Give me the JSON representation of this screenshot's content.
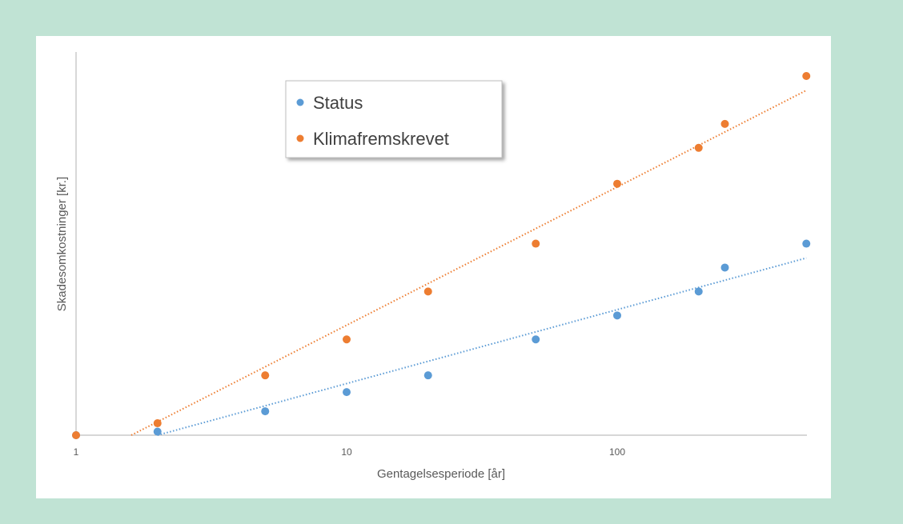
{
  "chart_data": {
    "type": "scatter",
    "title": "",
    "xlabel": "Gentagelsesperiode [år]",
    "ylabel": "Skadesomkostninger [kr.]",
    "x_scale": "log",
    "xlim": [
      1,
      500
    ],
    "x_ticks": [
      "1",
      "10",
      "100"
    ],
    "y_ticks_shown": false,
    "ylim": [
      0,
      15
    ],
    "grid": false,
    "legend_position": "top-center",
    "trendlines": "logarithmic, dotted",
    "series": [
      {
        "name": "Status",
        "color": "#5b9bd5",
        "x": [
          1,
          2,
          5,
          10,
          20,
          50,
          100,
          200,
          250,
          500
        ],
        "y": [
          0,
          0.15,
          1.0,
          1.8,
          2.5,
          4.0,
          5.0,
          6.0,
          7.0,
          8.0
        ],
        "trend_start": [
          2,
          0
        ],
        "trend_end": [
          500,
          7.4
        ]
      },
      {
        "name": "Klimafremskrevet",
        "color": "#ed7d31",
        "x": [
          1,
          2,
          5,
          10,
          20,
          50,
          100,
          200,
          250,
          500
        ],
        "y": [
          0,
          0.5,
          2.5,
          4.0,
          6.0,
          8.0,
          10.5,
          12.0,
          13.0,
          15.0
        ],
        "trend_start": [
          1.6,
          0
        ],
        "trend_end": [
          500,
          14.4
        ]
      }
    ]
  }
}
